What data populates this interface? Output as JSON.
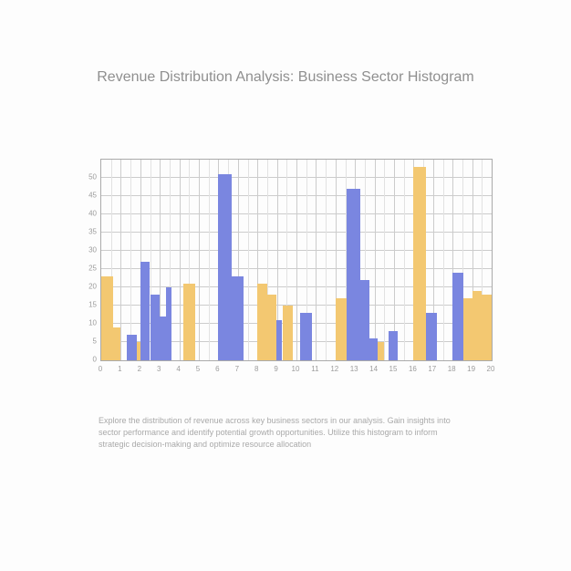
{
  "title": "Revenue Distribution Analysis: Business Sector Histogram",
  "description": "Explore the distribution of revenue across key business sectors in our analysis. Gain insights into sector performance and identify potential growth opportunities. Utilize this histogram to inform strategic decision-making and optimize resource allocation",
  "chart": {
    "type": "histogram-grouped",
    "colors": {
      "blue": "#7a86e0",
      "yellow": "#f3c871",
      "grid": "#cccccc",
      "axis": "#aaaaaa",
      "tick_text": "#9c9c9c",
      "background": "#ffffff"
    },
    "ylim": [
      0,
      55
    ],
    "y_ticks": [
      0,
      5,
      10,
      15,
      20,
      25,
      30,
      35,
      40,
      45,
      50
    ],
    "xlim": [
      0,
      20
    ],
    "x_ticks": [
      0,
      1,
      2,
      3,
      4,
      5,
      6,
      7,
      8,
      9,
      10,
      11,
      12,
      13,
      14,
      15,
      16,
      17,
      18,
      19,
      20
    ],
    "grid_v_minor": true,
    "grid_h_minor": false,
    "title_color": "#8f8f8f",
    "title_fontsize": 16,
    "label_fontsize": 8,
    "desc_color": "#a9a9a9",
    "desc_fontsize": 9,
    "bars": [
      {
        "x": 0.0,
        "w": 0.6,
        "h": 23,
        "color": "yellow"
      },
      {
        "x": 0.6,
        "w": 0.4,
        "h": 9,
        "color": "yellow"
      },
      {
        "x": 1.3,
        "w": 0.5,
        "h": 7,
        "color": "blue"
      },
      {
        "x": 1.8,
        "w": 0.35,
        "h": 5,
        "color": "yellow"
      },
      {
        "x": 2.0,
        "w": 0.5,
        "h": 27,
        "color": "blue"
      },
      {
        "x": 2.5,
        "w": 0.5,
        "h": 18,
        "color": "blue"
      },
      {
        "x": 3.0,
        "w": 0.3,
        "h": 12,
        "color": "blue"
      },
      {
        "x": 3.3,
        "w": 0.3,
        "h": 20,
        "color": "blue"
      },
      {
        "x": 4.2,
        "w": 0.6,
        "h": 21,
        "color": "yellow"
      },
      {
        "x": 6.0,
        "w": 0.7,
        "h": 51,
        "color": "blue"
      },
      {
        "x": 6.7,
        "w": 0.6,
        "h": 23,
        "color": "blue"
      },
      {
        "x": 8.0,
        "w": 0.5,
        "h": 21,
        "color": "yellow"
      },
      {
        "x": 8.5,
        "w": 0.45,
        "h": 18,
        "color": "yellow"
      },
      {
        "x": 8.95,
        "w": 0.3,
        "h": 11,
        "color": "blue"
      },
      {
        "x": 9.3,
        "w": 0.5,
        "h": 15,
        "color": "yellow"
      },
      {
        "x": 10.2,
        "w": 0.6,
        "h": 13,
        "color": "blue"
      },
      {
        "x": 12.0,
        "w": 0.55,
        "h": 17,
        "color": "yellow"
      },
      {
        "x": 12.55,
        "w": 0.7,
        "h": 47,
        "color": "blue"
      },
      {
        "x": 13.25,
        "w": 0.5,
        "h": 22,
        "color": "blue"
      },
      {
        "x": 13.75,
        "w": 0.4,
        "h": 6,
        "color": "blue"
      },
      {
        "x": 14.15,
        "w": 0.35,
        "h": 5,
        "color": "yellow"
      },
      {
        "x": 14.7,
        "w": 0.5,
        "h": 8,
        "color": "blue"
      },
      {
        "x": 16.0,
        "w": 0.65,
        "h": 53,
        "color": "yellow"
      },
      {
        "x": 16.65,
        "w": 0.55,
        "h": 13,
        "color": "blue"
      },
      {
        "x": 18.0,
        "w": 0.55,
        "h": 24,
        "color": "blue"
      },
      {
        "x": 18.55,
        "w": 0.45,
        "h": 17,
        "color": "yellow"
      },
      {
        "x": 19.0,
        "w": 0.5,
        "h": 19,
        "color": "yellow"
      },
      {
        "x": 19.5,
        "w": 0.5,
        "h": 18,
        "color": "yellow"
      }
    ]
  }
}
